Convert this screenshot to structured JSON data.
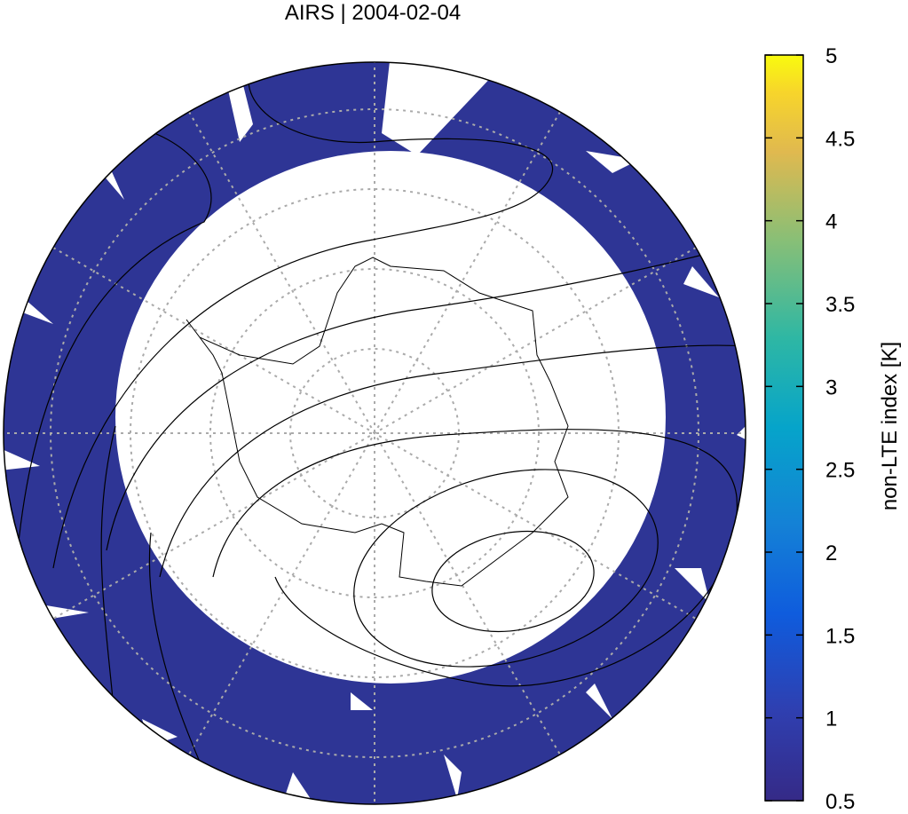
{
  "title": "AIRS | 2004-02-04",
  "colorbar": {
    "label": "non-LTE index [K]",
    "lim": [
      0.5,
      5
    ],
    "ticks": [
      0.5,
      1,
      1.5,
      2,
      2.5,
      3,
      3.5,
      4,
      4.5,
      5
    ]
  }
}
